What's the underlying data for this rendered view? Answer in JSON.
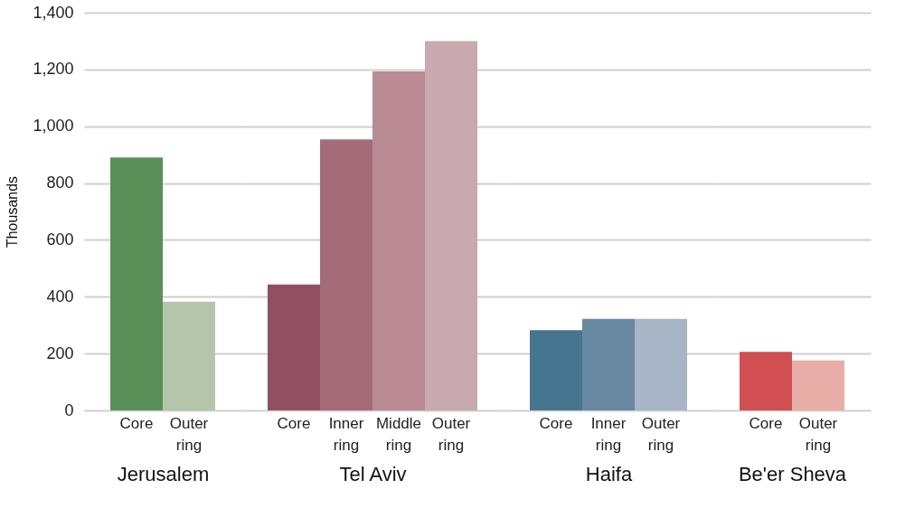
{
  "chart_data": [
    {
      "type": "bar",
      "xlabel": "Jerusalem",
      "ylabel": "Thousands",
      "categories": [
        "Core",
        "Outer ring"
      ],
      "values": [
        890,
        383
      ],
      "colors": [
        "#5a8f58",
        "#b5c5ab"
      ],
      "ylim": [
        0,
        1400
      ],
      "yticks": [
        0,
        200,
        400,
        600,
        800,
        {
          "value": 1000,
          "label": "1,000"
        },
        {
          "value": 1200,
          "label": "1,200"
        },
        {
          "value": 1400,
          "label": "1,400"
        }
      ],
      "grid": "y"
    },
    {
      "type": "bar",
      "xlabel": "Tel Aviv",
      "categories": [
        "Core",
        "Inner ring",
        "Middle ring",
        "Outer ring"
      ],
      "values": [
        443,
        954,
        1193,
        1300
      ],
      "colors": [
        "#914f62",
        "#a46b78",
        "#b98b94",
        "#c7a9af"
      ],
      "ylim": [
        0,
        1400
      ],
      "yticks": [
        0,
        200,
        400,
        600,
        800,
        1000,
        1200,
        1400
      ],
      "grid": "y",
      "tick_labels": "x"
    },
    {
      "type": "bar",
      "xlabel": "Haifa",
      "categories": [
        "Core",
        "Inner ring",
        "Outer ring"
      ],
      "values": [
        282,
        322,
        322
      ],
      "colors": [
        "#46758f",
        "#6988a1",
        "#a8b5c6"
      ],
      "ylim": [
        0,
        1400
      ],
      "yticks": [
        0,
        200,
        400,
        600,
        800,
        1000,
        1200,
        1400
      ],
      "grid": "y",
      "tick_labels": "x"
    },
    {
      "type": "bar",
      "xlabel": "Be'er Sheva",
      "categories": [
        "Core",
        "Outer ring"
      ],
      "values": [
        206,
        176
      ],
      "colors": [
        "#d14e52",
        "#e8ada6"
      ],
      "ylim": [
        0,
        1400
      ],
      "yticks": [
        0,
        200,
        400,
        600,
        800,
        1000,
        1200,
        1400
      ],
      "grid": "y",
      "tick_labels": "x"
    }
  ]
}
